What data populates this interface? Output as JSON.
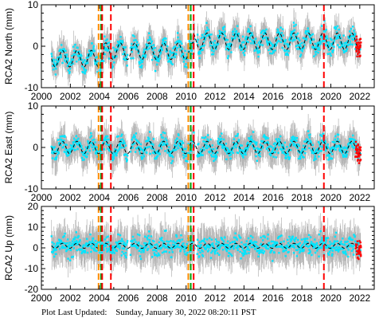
{
  "footer": {
    "label": "Plot Last Updated:",
    "timestamp": "Sunday, January 30, 2022 08:20:11 PST"
  },
  "colors": {
    "background": "#ffffff",
    "axis": "#000000",
    "errorbar": "#b4b4b4",
    "data_points": "#00e5ff",
    "model_line": "#000000",
    "recent_points": "#ff0000",
    "event_red": "#ff0000",
    "event_green": "#00a000",
    "event_orange": "#ff8c00"
  },
  "chart_data": [
    {
      "type": "scatter",
      "ylabel": "RCA2 North (mm)",
      "xlim": [
        2000,
        2023
      ],
      "ylim": [
        -10,
        10
      ],
      "xticks": [
        2000,
        2002,
        2004,
        2006,
        2008,
        2010,
        2012,
        2014,
        2016,
        2018,
        2020,
        2022
      ],
      "yticks": [
        -10,
        0,
        10
      ],
      "grid": false,
      "series": [
        {
          "role": "daily positions with error bars",
          "x_start": 2000.7,
          "x_end": 2022.05,
          "spread": 2.2,
          "error": 2.8,
          "segments": [
            {
              "from": 2000.7,
              "to": 2004.3,
              "offset": -3.0
            },
            {
              "from": 2004.3,
              "to": 2010.5,
              "offset": -1.2
            },
            {
              "from": 2010.5,
              "to": 2022.05,
              "offset": 1.2
            }
          ],
          "seasonal_amplitude": 2.0
        },
        {
          "role": "seasonal model",
          "style": "dashed"
        },
        {
          "role": "recent positions",
          "x_from": 2021.7,
          "x_to": 2022.08
        }
      ],
      "events": [
        {
          "x": 2003.95,
          "color": "orange"
        },
        {
          "x": 2004.12,
          "color": "green"
        },
        {
          "x": 2004.2,
          "color": "red"
        },
        {
          "x": 2004.8,
          "color": "red"
        },
        {
          "x": 2010.15,
          "color": "orange"
        },
        {
          "x": 2010.32,
          "color": "green"
        },
        {
          "x": 2010.52,
          "color": "red"
        },
        {
          "x": 2019.52,
          "color": "red"
        }
      ]
    },
    {
      "type": "scatter",
      "ylabel": "RCA2 East (mm)",
      "xlim": [
        2000,
        2023
      ],
      "ylim": [
        -10,
        10
      ],
      "xticks": [
        2000,
        2002,
        2004,
        2006,
        2008,
        2010,
        2012,
        2014,
        2016,
        2018,
        2020,
        2022
      ],
      "yticks": [
        -10,
        0,
        10
      ],
      "grid": false,
      "series": [
        {
          "role": "daily positions with error bars",
          "x_start": 2000.7,
          "x_end": 2022.05,
          "spread": 2.0,
          "error": 3.0,
          "segments": [
            {
              "from": 2000.7,
              "to": 2022.05,
              "offset": 0.0
            }
          ],
          "seasonal_amplitude": 1.5
        },
        {
          "role": "seasonal model",
          "style": "dashed"
        },
        {
          "role": "recent positions",
          "x_from": 2021.7,
          "x_to": 2022.08
        }
      ],
      "events": [
        {
          "x": 2003.95,
          "color": "orange"
        },
        {
          "x": 2004.12,
          "color": "green"
        },
        {
          "x": 2004.2,
          "color": "red"
        },
        {
          "x": 2004.8,
          "color": "red"
        },
        {
          "x": 2010.15,
          "color": "orange"
        },
        {
          "x": 2010.32,
          "color": "green"
        },
        {
          "x": 2010.52,
          "color": "red"
        },
        {
          "x": 2019.52,
          "color": "red"
        }
      ]
    },
    {
      "type": "scatter",
      "ylabel": "RCA2 Up (mm)",
      "xlim": [
        2000,
        2023
      ],
      "ylim": [
        -20,
        20
      ],
      "xticks": [
        2000,
        2002,
        2004,
        2006,
        2008,
        2010,
        2012,
        2014,
        2016,
        2018,
        2020,
        2022
      ],
      "yticks": [
        -20,
        -10,
        0,
        10,
        20
      ],
      "grid": false,
      "series": [
        {
          "role": "daily positions with error bars",
          "x_start": 2000.7,
          "x_end": 2022.05,
          "spread": 4.5,
          "error": 7.0,
          "segments": [
            {
              "from": 2000.7,
              "to": 2022.05,
              "offset": 1.0
            }
          ],
          "seasonal_amplitude": 1.2
        },
        {
          "role": "seasonal model",
          "style": "dashed"
        },
        {
          "role": "recent positions",
          "x_from": 2021.7,
          "x_to": 2022.08
        }
      ],
      "events": [
        {
          "x": 2003.95,
          "color": "orange"
        },
        {
          "x": 2004.12,
          "color": "green"
        },
        {
          "x": 2004.2,
          "color": "red"
        },
        {
          "x": 2004.8,
          "color": "red"
        },
        {
          "x": 2010.15,
          "color": "orange"
        },
        {
          "x": 2010.32,
          "color": "green"
        },
        {
          "x": 2010.52,
          "color": "red"
        },
        {
          "x": 2019.52,
          "color": "red"
        }
      ]
    }
  ]
}
